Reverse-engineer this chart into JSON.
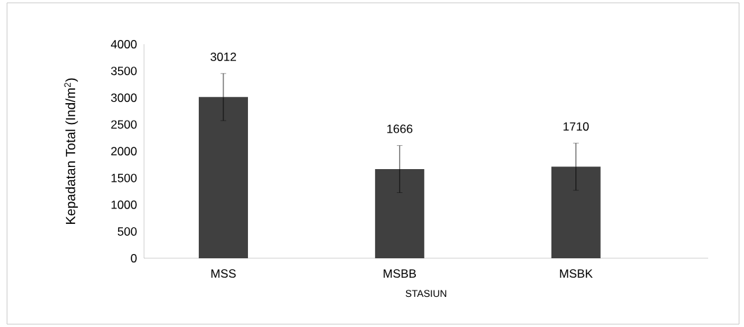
{
  "chart_data": {
    "type": "bar",
    "xlabel": "STASIUN",
    "ylabel": "Kepadatan Total (Ind/m$^{2}$)",
    "categories": [
      "MSS",
      "MSBB",
      "MSBK"
    ],
    "values": [
      3012,
      1666,
      1710
    ],
    "errors": [
      440,
      440,
      440
    ],
    "color": "#404040",
    "ylim": [
      0,
      4000
    ],
    "yticks": [
      0,
      500,
      1000,
      1500,
      2000,
      2500,
      3000,
      3500,
      4000
    ],
    "data_labels": true,
    "grid": false
  }
}
